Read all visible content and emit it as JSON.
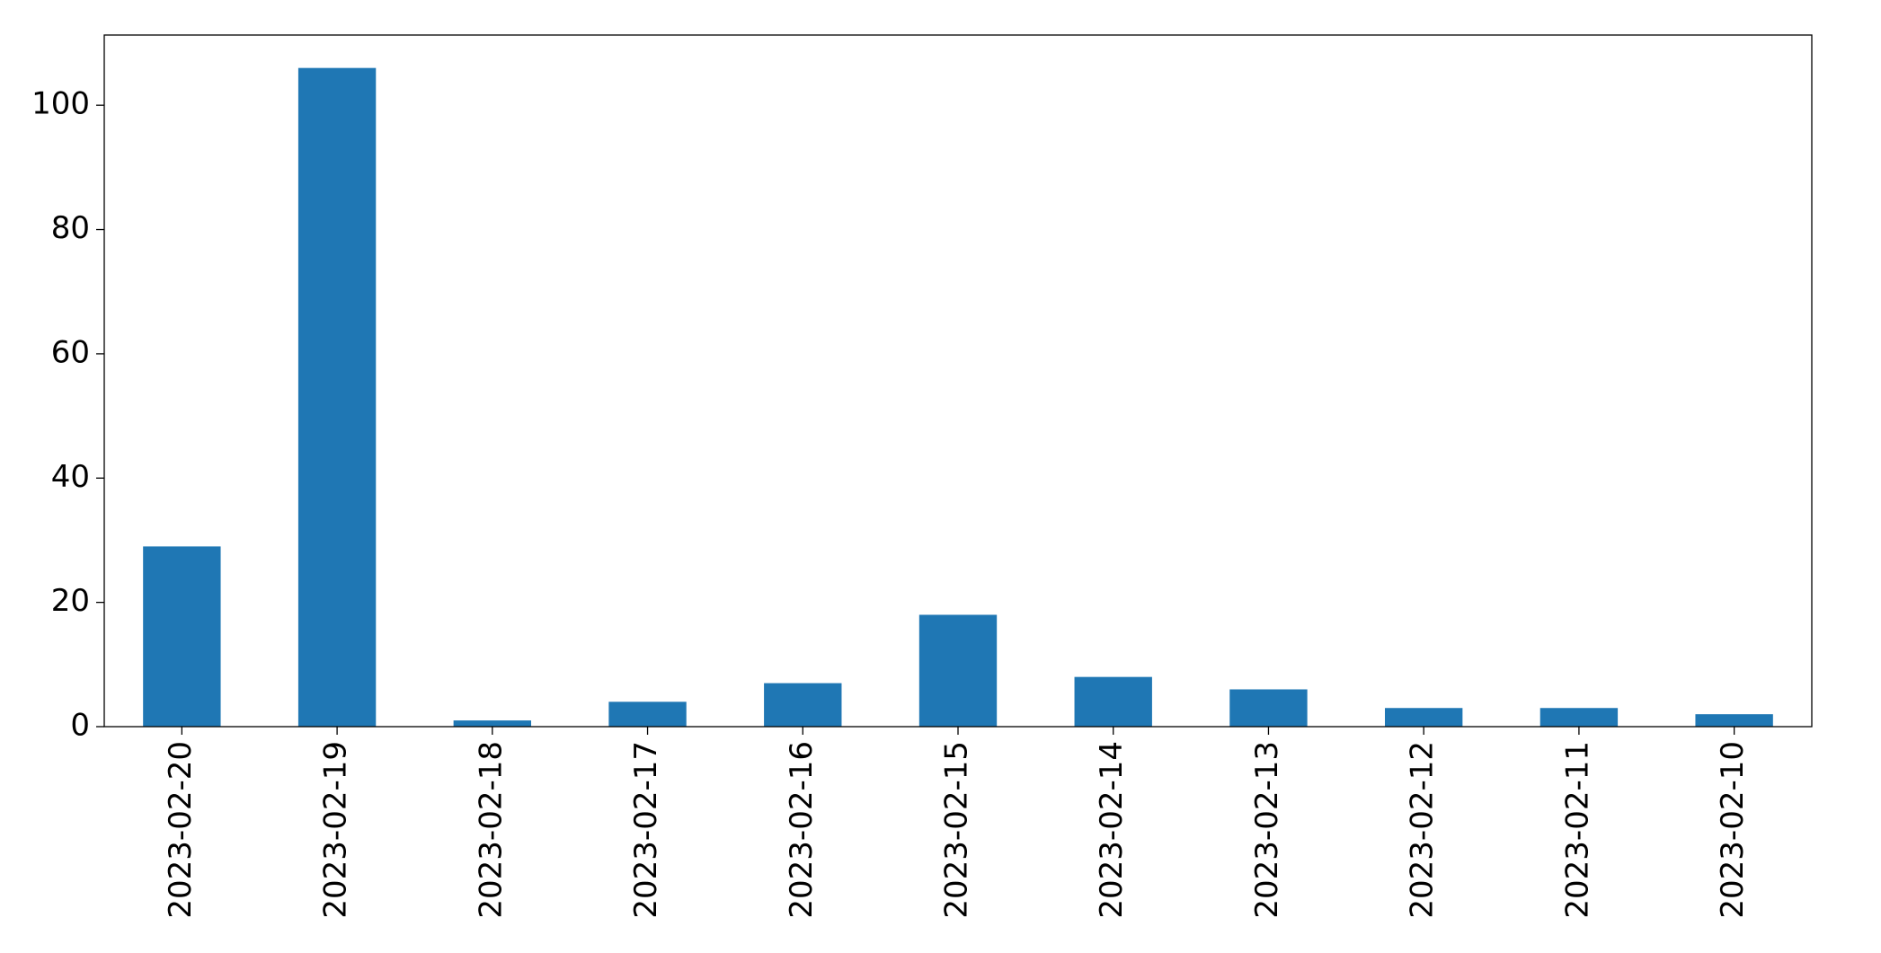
{
  "chart_data": {
    "type": "bar",
    "categories": [
      "2023-02-20",
      "2023-02-19",
      "2023-02-18",
      "2023-02-17",
      "2023-02-16",
      "2023-02-15",
      "2023-02-14",
      "2023-02-13",
      "2023-02-12",
      "2023-02-11",
      "2023-02-10"
    ],
    "values": [
      29,
      106,
      1,
      4,
      7,
      18,
      8,
      6,
      3,
      3,
      2
    ],
    "color": "#1f77b4",
    "ylim": [
      0,
      111.3
    ],
    "yticks": [
      0,
      20,
      40,
      60,
      80,
      100
    ],
    "grid": false
  }
}
